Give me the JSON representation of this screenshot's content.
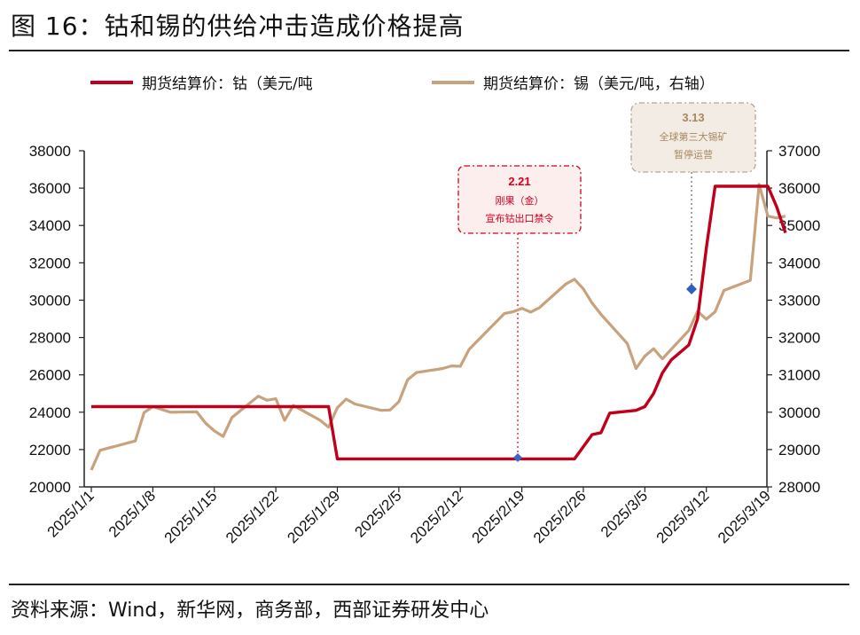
{
  "figure": {
    "title": "图 16：钴和锡的供给冲击造成价格提高",
    "source": "资料来源：Wind，新华网，商务部，西部证券研发中心"
  },
  "chart_data": {
    "type": "line",
    "legend_position": "top",
    "grid": false,
    "x_ticks": [
      "2025/1/1",
      "2025/1/8",
      "2025/1/15",
      "2025/1/22",
      "2025/1/29",
      "2025/2/5",
      "2025/2/12",
      "2025/2/19",
      "2025/2/26",
      "2025/3/5",
      "2025/3/12",
      "2025/3/19"
    ],
    "y_left": {
      "ticks": [
        20000,
        22000,
        24000,
        26000,
        28000,
        30000,
        32000,
        34000,
        36000,
        38000
      ],
      "ylim": [
        20000,
        38000
      ]
    },
    "y_right": {
      "ticks": [
        28000,
        29000,
        30000,
        31000,
        32000,
        33000,
        34000,
        35000,
        36000,
        37000
      ],
      "ylim": [
        28000,
        37000
      ]
    },
    "series": [
      {
        "name": "期货结算价：钴（美元/吨",
        "axis": "left",
        "color": "#c0001a",
        "x": [
          "2025/1/1",
          "2025/1/28",
          "2025/1/29",
          "2025/2/25",
          "2025/2/27",
          "2025/2/28",
          "2025/3/1",
          "2025/3/4",
          "2025/3/5",
          "2025/3/6",
          "2025/3/7",
          "2025/3/8",
          "2025/3/9",
          "2025/3/10",
          "2025/3/11",
          "2025/3/12",
          "2025/3/13",
          "2025/3/14",
          "2025/3/19",
          "2025/3/20",
          "2025/3/21"
        ],
        "values": [
          24300,
          24300,
          21500,
          21500,
          22800,
          22900,
          23950,
          24100,
          24300,
          25000,
          26100,
          26800,
          27200,
          27600,
          29000,
          32800,
          36100,
          36100,
          36100,
          35000,
          33600
        ]
      },
      {
        "name": "期货结算价：锡（美元/吨，右轴）",
        "axis": "right",
        "color": "#c8a27c",
        "x": [
          "2025/1/1",
          "2025/1/2",
          "2025/1/6",
          "2025/1/7",
          "2025/1/8",
          "2025/1/10",
          "2025/1/13",
          "2025/1/14",
          "2025/1/15",
          "2025/1/16",
          "2025/1/17",
          "2025/1/20",
          "2025/1/21",
          "2025/1/22",
          "2025/1/23",
          "2025/1/24",
          "2025/1/27",
          "2025/1/28",
          "2025/1/29",
          "2025/1/30",
          "2025/1/31",
          "2025/2/3",
          "2025/2/4",
          "2025/2/5",
          "2025/2/6",
          "2025/2/7",
          "2025/2/10",
          "2025/2/11",
          "2025/2/12",
          "2025/2/13",
          "2025/2/14",
          "2025/2/17",
          "2025/2/18",
          "2025/2/19",
          "2025/2/20",
          "2025/2/21",
          "2025/2/24",
          "2025/2/25",
          "2025/2/26",
          "2025/2/27",
          "2025/2/28",
          "2025/3/3",
          "2025/3/4",
          "2025/3/5",
          "2025/3/6",
          "2025/3/7",
          "2025/3/10",
          "2025/3/11",
          "2025/3/12",
          "2025/3/13",
          "2025/3/14",
          "2025/3/17",
          "2025/3/18",
          "2025/3/19",
          "2025/3/20",
          "2025/3/21"
        ],
        "values": [
          28450,
          28980,
          29230,
          29990,
          30150,
          30000,
          30010,
          29710,
          29500,
          29350,
          29860,
          30430,
          30320,
          30360,
          29780,
          30180,
          29790,
          29600,
          30120,
          30350,
          30220,
          30050,
          30060,
          30280,
          30870,
          31060,
          31170,
          31240,
          31230,
          31680,
          31920,
          32640,
          32690,
          32780,
          32680,
          32800,
          33430,
          33560,
          33300,
          32920,
          32620,
          31840,
          31170,
          31500,
          31700,
          31430,
          32190,
          32700,
          32490,
          32690,
          33260,
          33530,
          36100,
          35250,
          35200,
          35250
        ]
      }
    ],
    "annotations": [
      {
        "label": "2.21",
        "text": [
          "刚果（金）",
          "宣布钴出口禁令"
        ],
        "color": "#d4001c"
      },
      {
        "label": "3.13",
        "text": [
          "全球第三大锡矿",
          "暂停运营"
        ],
        "color": "#b8a590"
      }
    ]
  }
}
